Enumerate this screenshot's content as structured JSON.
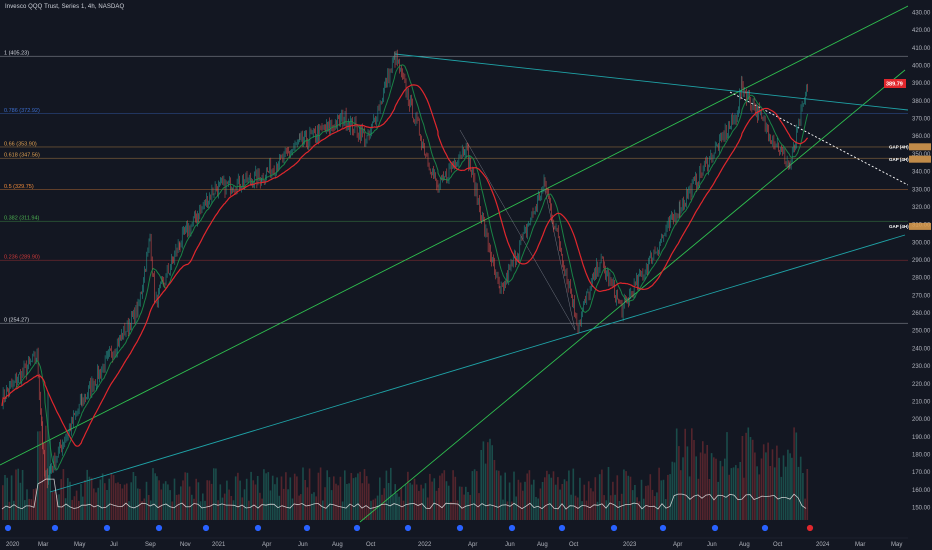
{
  "header": {
    "title": "Invesco QQQ Trust, Series 1, 4h, NASDAQ"
  },
  "colors": {
    "bg": "#131722",
    "up": "#26a69a",
    "down": "#ef5350",
    "ma_red": "#e0272d",
    "ma_green": "#1b8f4a",
    "trend_teal": "#1fa3a7",
    "trend_green": "#2fbf4f",
    "vol_up": "#1e5f58",
    "vol_down": "#6b2b32",
    "price_badge": "#e0272d",
    "gap_badge": "#e0a050"
  },
  "chart_data": {
    "type": "candlestick",
    "title": "Invesco QQQ Trust, Series 1, 4h, NASDAQ",
    "y_axis": {
      "range": [
        143,
        437
      ],
      "ticks": [
        150,
        160,
        170,
        180,
        190,
        200,
        210,
        220,
        230,
        240,
        250,
        260,
        270,
        280,
        290,
        300,
        310,
        320,
        330,
        340,
        350,
        360,
        370,
        380,
        390,
        400,
        410,
        420,
        430
      ]
    },
    "x_axis": {
      "labels": [
        "2020",
        "Mar",
        "May",
        "Jul",
        "Sep",
        "Nov",
        "2021",
        "Apr",
        "Jun",
        "Aug",
        "Oct",
        "2022",
        "Apr",
        "Jun",
        "Aug",
        "Oct",
        "2023",
        "Apr",
        "Jun",
        "Aug",
        "Oct",
        "2024",
        "Mar",
        "May"
      ]
    },
    "price_path": [
      {
        "d": "2020",
        "p": 212
      },
      {
        "d": "Mar",
        "p": 236
      },
      {
        "d": "Mar",
        "p": 165
      },
      {
        "d": "May",
        "p": 210
      },
      {
        "d": "Jul",
        "p": 262
      },
      {
        "d": "Sep",
        "p": 302
      },
      {
        "d": "Sep",
        "p": 265
      },
      {
        "d": "Nov",
        "p": 300
      },
      {
        "d": "2021",
        "p": 330
      },
      {
        "d": "Apr",
        "p": 337
      },
      {
        "d": "Jun",
        "p": 356
      },
      {
        "d": "Aug",
        "p": 370
      },
      {
        "d": "Oct",
        "p": 358
      },
      {
        "d": "2022",
        "p": 405
      },
      {
        "d": "Feb",
        "p": 330
      },
      {
        "d": "Apr",
        "p": 355
      },
      {
        "d": "Jun",
        "p": 270
      },
      {
        "d": "Aug",
        "p": 333
      },
      {
        "d": "Oct",
        "p": 254
      },
      {
        "d": "Dec",
        "p": 290
      },
      {
        "d": "2023",
        "p": 262
      },
      {
        "d": "Apr",
        "p": 320
      },
      {
        "d": "Jun",
        "p": 370
      },
      {
        "d": "Aug",
        "p": 388
      },
      {
        "d": "Oct",
        "p": 343
      },
      {
        "d": "Dec",
        "p": 389
      }
    ],
    "last_price": "389.79",
    "fib_levels": [
      {
        "ratio": "1",
        "label": "1 (405.23)",
        "value": 405.23,
        "color": "#d1d4dc"
      },
      {
        "ratio": "0.786",
        "label": "0.786 (372.92)",
        "value": 372.92,
        "color": "#3d6fd0"
      },
      {
        "ratio": "0.66",
        "label": "0.66 (353.90)",
        "value": 353.9,
        "color": "#e0a050"
      },
      {
        "ratio": "0.618",
        "label": "0.618 (347.56)",
        "value": 347.56,
        "color": "#e0a050"
      },
      {
        "ratio": "0.5",
        "label": "0.5 (329.75)",
        "value": 329.75,
        "color": "#f08a3a"
      },
      {
        "ratio": "0.382",
        "label": "0.382 (311.94)",
        "value": 311.94,
        "color": "#4caf50"
      },
      {
        "ratio": "0.236",
        "label": "0.236 (289.90)",
        "value": 289.9,
        "color": "#d03a3a"
      },
      {
        "ratio": "0",
        "label": "0 (254.27)",
        "value": 254.27,
        "color": "#d1d4dc"
      }
    ],
    "gaps": [
      {
        "label": "GAP (4H)",
        "value": 354
      },
      {
        "label": "GAP (4H)",
        "value": 347
      },
      {
        "label": "GAP (4H)",
        "value": 309
      }
    ],
    "grid": false,
    "legend": "none"
  }
}
